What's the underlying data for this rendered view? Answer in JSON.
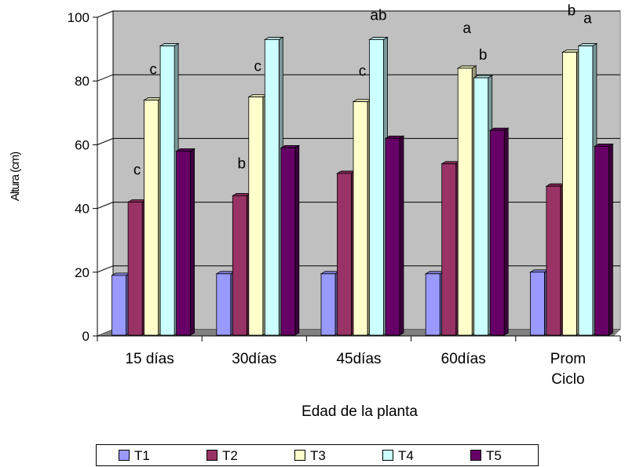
{
  "chart_data": {
    "type": "bar",
    "categories": [
      "15 días",
      "30días",
      "45días",
      "60días",
      "Prom Ciclo"
    ],
    "series": [
      {
        "name": "T1",
        "values": [
          19,
          19.5,
          19.5,
          19.5,
          20
        ]
      },
      {
        "name": "T2",
        "values": [
          42,
          44,
          51,
          54,
          47
        ]
      },
      {
        "name": "T3",
        "values": [
          74,
          75,
          73.5,
          84,
          89
        ]
      },
      {
        "name": "T4",
        "values": [
          91,
          93,
          93,
          81,
          91
        ]
      },
      {
        "name": "T5",
        "values": [
          58,
          59,
          62,
          64.5,
          59.5
        ]
      }
    ],
    "xlabel": "Edad de la planta",
    "ylabel": "Altura (cm)",
    "ylim": [
      0,
      100
    ],
    "yticks": [
      0,
      20,
      40,
      60,
      80,
      100
    ],
    "grid": true,
    "legend_position": "bottom",
    "annotations": [
      {
        "category": "15 días",
        "series": "T2",
        "text": "c"
      },
      {
        "category": "15 días",
        "series": "T3",
        "text": "c"
      },
      {
        "category": "30días",
        "series": "T2",
        "text": "b"
      },
      {
        "category": "30días",
        "series": "T3",
        "text": "c"
      },
      {
        "category": "45días",
        "series": "T3",
        "text": "c"
      },
      {
        "category": "45días",
        "series": "T4",
        "text": "ab"
      },
      {
        "category": "60días",
        "series": "T3",
        "text": "a"
      },
      {
        "category": "60días",
        "series": "T4",
        "text": "b"
      },
      {
        "category": "Prom Ciclo",
        "series": "T3",
        "text": "b"
      },
      {
        "category": "Prom Ciclo",
        "series": "T4",
        "text": "a"
      }
    ],
    "colors": {
      "T1": "#9999ff",
      "T2": "#993366",
      "T3": "#ffffcc",
      "T4": "#ccffff",
      "T5": "#660066",
      "wall": "#c0c0c0",
      "floor": "#808080"
    }
  }
}
